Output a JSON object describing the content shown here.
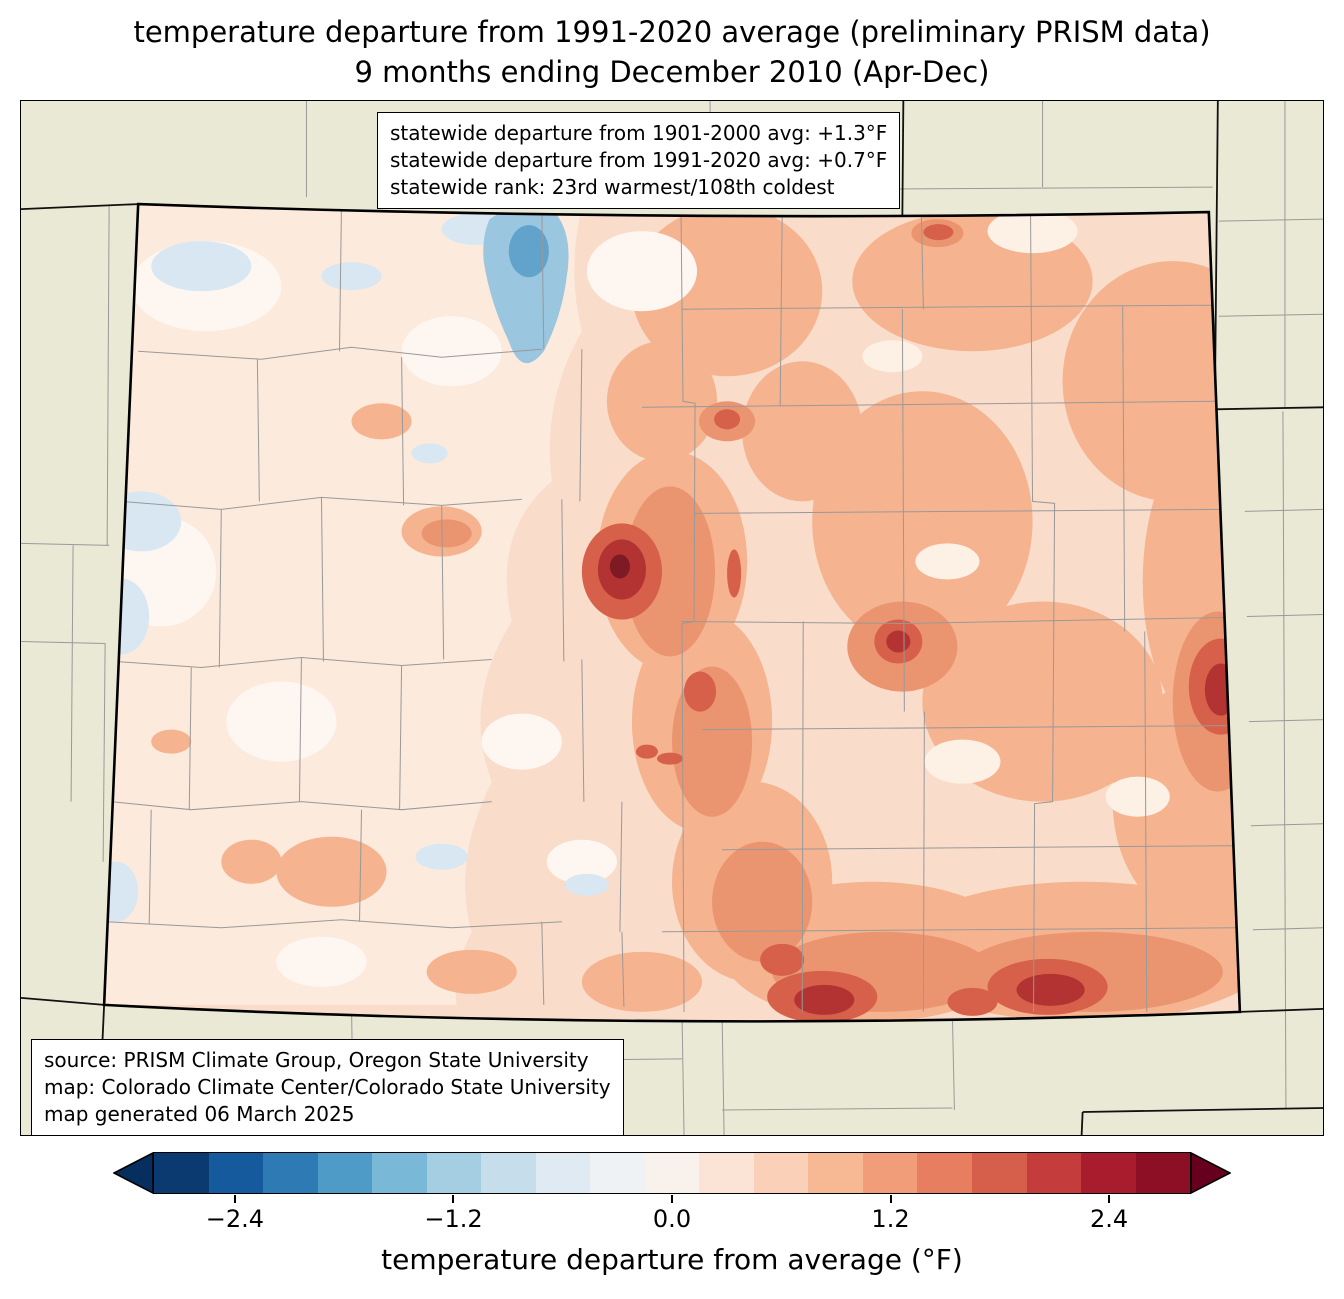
{
  "title": {
    "line1": "temperature departure from 1991-2020 average (preliminary PRISM data)",
    "line2": "9 months ending December 2010 (Apr-Dec)"
  },
  "stats_box": {
    "line1": "statewide departure from 1901-2000 avg: +1.3°F",
    "line2": "statewide departure from 1991-2020 avg: +0.7°F",
    "line3": "statewide rank: 23rd warmest/108th coldest"
  },
  "source_box": {
    "line1": "source: PRISM Climate Group, Oregon State University",
    "line2": "map: Colorado Climate Center/Colorado State University",
    "line3": "map generated 06 March 2025"
  },
  "colorbar": {
    "label": "temperature departure from average (°F)",
    "value_range": [
      -2.85,
      2.85
    ],
    "ticks": [
      {
        "label": "−2.4",
        "pos": 7.895
      },
      {
        "label": "−1.2",
        "pos": 28.947
      },
      {
        "label": "0.0",
        "pos": 50
      },
      {
        "label": "1.2",
        "pos": 71.053
      },
      {
        "label": "2.4",
        "pos": 92.105
      }
    ],
    "segment_colors": [
      "#0a3a6f",
      "#155a9c",
      "#2e7ab5",
      "#4f9bc7",
      "#7ab8d8",
      "#a6cee3",
      "#c6ddec",
      "#dfeaf2",
      "#eef2f5",
      "#f8f1ec",
      "#fbe4d6",
      "#fad0b9",
      "#f7b894",
      "#f19d79",
      "#e67e5f",
      "#d65f4b",
      "#c43d3c",
      "#a81c2e",
      "#8c0f25"
    ],
    "arrow_left_color": "#062f5f",
    "arrow_right_color": "#67001f"
  },
  "map": {
    "region": "Colorado",
    "palette": {
      "outside": "#e9e9d6",
      "state_base": "#f9dcc9",
      "pale": "#fceadd",
      "palest": "#fef7f1",
      "cream": "#fdf0e5",
      "blue_light": "#d8e7f2",
      "blue_mid": "#9ac6df",
      "blue_deep": "#61a3cb",
      "salmon": "#f5b38f",
      "salmon_deep": "#eb9570",
      "red": "#d6604a",
      "red_deep": "#b23332",
      "maroon": "#7d1a23",
      "county_line": "#999999",
      "state_line": "#111111"
    }
  }
}
